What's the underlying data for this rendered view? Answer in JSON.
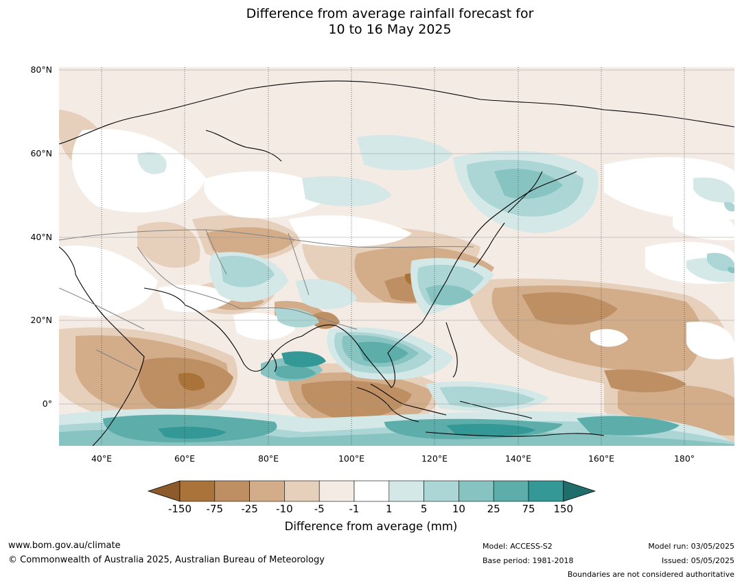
{
  "title": {
    "line1": "Difference from average rainfall forecast for",
    "line2": "10 to 16 May 2025"
  },
  "map": {
    "lat_labels": [
      "80°N",
      "60°N",
      "40°N",
      "20°N",
      "0°"
    ],
    "lon_labels": [
      "40°E",
      "60°E",
      "80°E",
      "100°E",
      "120°E",
      "140°E",
      "160°E",
      "180°"
    ],
    "extent": {
      "lon": [
        30,
        192
      ],
      "lat": [
        -10,
        80
      ]
    },
    "region_description": "Asia, Indian Ocean and western Pacific"
  },
  "colorbar": {
    "ticks": [
      "-150",
      "-75",
      "-25",
      "-10",
      "-5",
      "-1",
      "1",
      "5",
      "10",
      "25",
      "75",
      "150"
    ],
    "colors": [
      "#8c5a2b",
      "#a97339",
      "#bd8f62",
      "#d3ad89",
      "#e6d0bc",
      "#f4ebe5",
      "#ffffff",
      "#d3e8e7",
      "#acd6d5",
      "#86c3c1",
      "#5dadaa",
      "#339896",
      "#1f6e6c"
    ],
    "label": "Difference from average (mm)"
  },
  "footer": {
    "website": "www.bom.gov.au/climate",
    "copyright": "© Commonwealth of Australia 2025, Australian Bureau of Meteorology",
    "model": "Model: ACCESS-S2",
    "base_period": "Base period: 1981-2018",
    "model_run": "Model run: 03/05/2025",
    "issued": "Issued: 05/05/2025",
    "disclaimer": "Boundaries are not considered authoritative"
  }
}
